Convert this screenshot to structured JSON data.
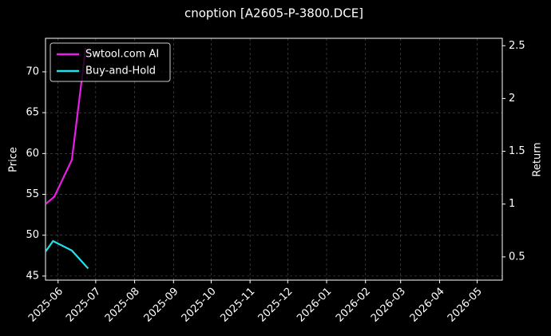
{
  "chart_data": {
    "type": "line",
    "title": "cnoption [A2605-P-3800.DCE]",
    "y_label": "Price",
    "y2_label": "Return",
    "x": [
      "2025-05-22",
      "2025-05-29",
      "2025-06-12",
      "2025-06-23"
    ],
    "series": [
      {
        "name": "Swtool.com AI",
        "color": "#e81ee8",
        "axis": "y2",
        "values": [
          1.0,
          1.07,
          1.42,
          2.48
        ]
      },
      {
        "name": "Buy-and-Hold",
        "color": "#22e0ee",
        "axis": "y2",
        "x": [
          "2025-05-22",
          "2025-05-28",
          "2025-06-12",
          "2025-06-25"
        ],
        "values": [
          0.55,
          0.65,
          0.56,
          0.39
        ]
      }
    ],
    "xlim": [
      "2025-05-22",
      "2026-05-21"
    ],
    "xticks": [
      "2025-06",
      "2025-07",
      "2025-08",
      "2025-09",
      "2025-10",
      "2025-11",
      "2025-12",
      "2026-01",
      "2026-02",
      "2026-03",
      "2026-04",
      "2026-05"
    ],
    "ylim": [
      44.5,
      74.1
    ],
    "yticks": [
      45,
      50,
      55,
      60,
      65,
      70
    ],
    "y2lim": [
      0.28,
      2.57
    ],
    "y2ticks": [
      0.5,
      1.0,
      1.5,
      2.0,
      2.5
    ],
    "grid": true,
    "legend": "upper left"
  }
}
